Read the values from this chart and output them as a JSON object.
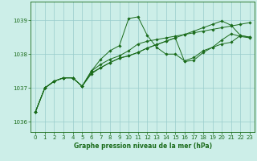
{
  "title": "Graphe pression niveau de la mer (hPa)",
  "bg_color": "#cceee8",
  "grid_color": "#99cccc",
  "line_color": "#1a6b1a",
  "xlim": [
    -0.5,
    23.5
  ],
  "ylim": [
    1035.7,
    1039.55
  ],
  "yticks": [
    1036,
    1037,
    1038,
    1039
  ],
  "xticks": [
    0,
    1,
    2,
    3,
    4,
    5,
    6,
    7,
    8,
    9,
    10,
    11,
    12,
    13,
    14,
    15,
    16,
    17,
    18,
    19,
    20,
    21,
    22,
    23
  ],
  "series": [
    [
      1036.3,
      1037.0,
      1037.2,
      1037.3,
      1037.3,
      1037.05,
      1037.5,
      1037.85,
      1038.1,
      1038.25,
      1039.05,
      1039.1,
      1038.55,
      1038.2,
      1038.0,
      1038.0,
      1037.8,
      1037.9,
      1038.1,
      1038.2,
      1038.3,
      1038.35,
      1038.55,
      1038.5
    ],
    [
      1036.3,
      1037.0,
      1037.2,
      1037.3,
      1037.3,
      1037.05,
      1037.5,
      1037.7,
      1037.85,
      1037.95,
      1038.1,
      1038.3,
      1038.38,
      1038.43,
      1038.48,
      1038.53,
      1038.58,
      1038.63,
      1038.68,
      1038.73,
      1038.78,
      1038.83,
      1038.88,
      1038.93
    ],
    [
      1036.3,
      1037.0,
      1037.2,
      1037.3,
      1037.3,
      1037.05,
      1037.45,
      1037.6,
      1037.75,
      1037.88,
      1037.95,
      1038.05,
      1038.18,
      1038.28,
      1038.38,
      1038.48,
      1038.58,
      1038.68,
      1038.78,
      1038.88,
      1038.98,
      1038.85,
      1038.55,
      1038.5
    ],
    [
      1036.3,
      1037.0,
      1037.2,
      1037.3,
      1037.3,
      1037.05,
      1037.42,
      1037.6,
      1037.75,
      1037.88,
      1037.95,
      1038.05,
      1038.18,
      1038.28,
      1038.38,
      1038.48,
      1037.78,
      1037.82,
      1038.05,
      1038.2,
      1038.42,
      1038.6,
      1038.52,
      1038.48
    ]
  ]
}
